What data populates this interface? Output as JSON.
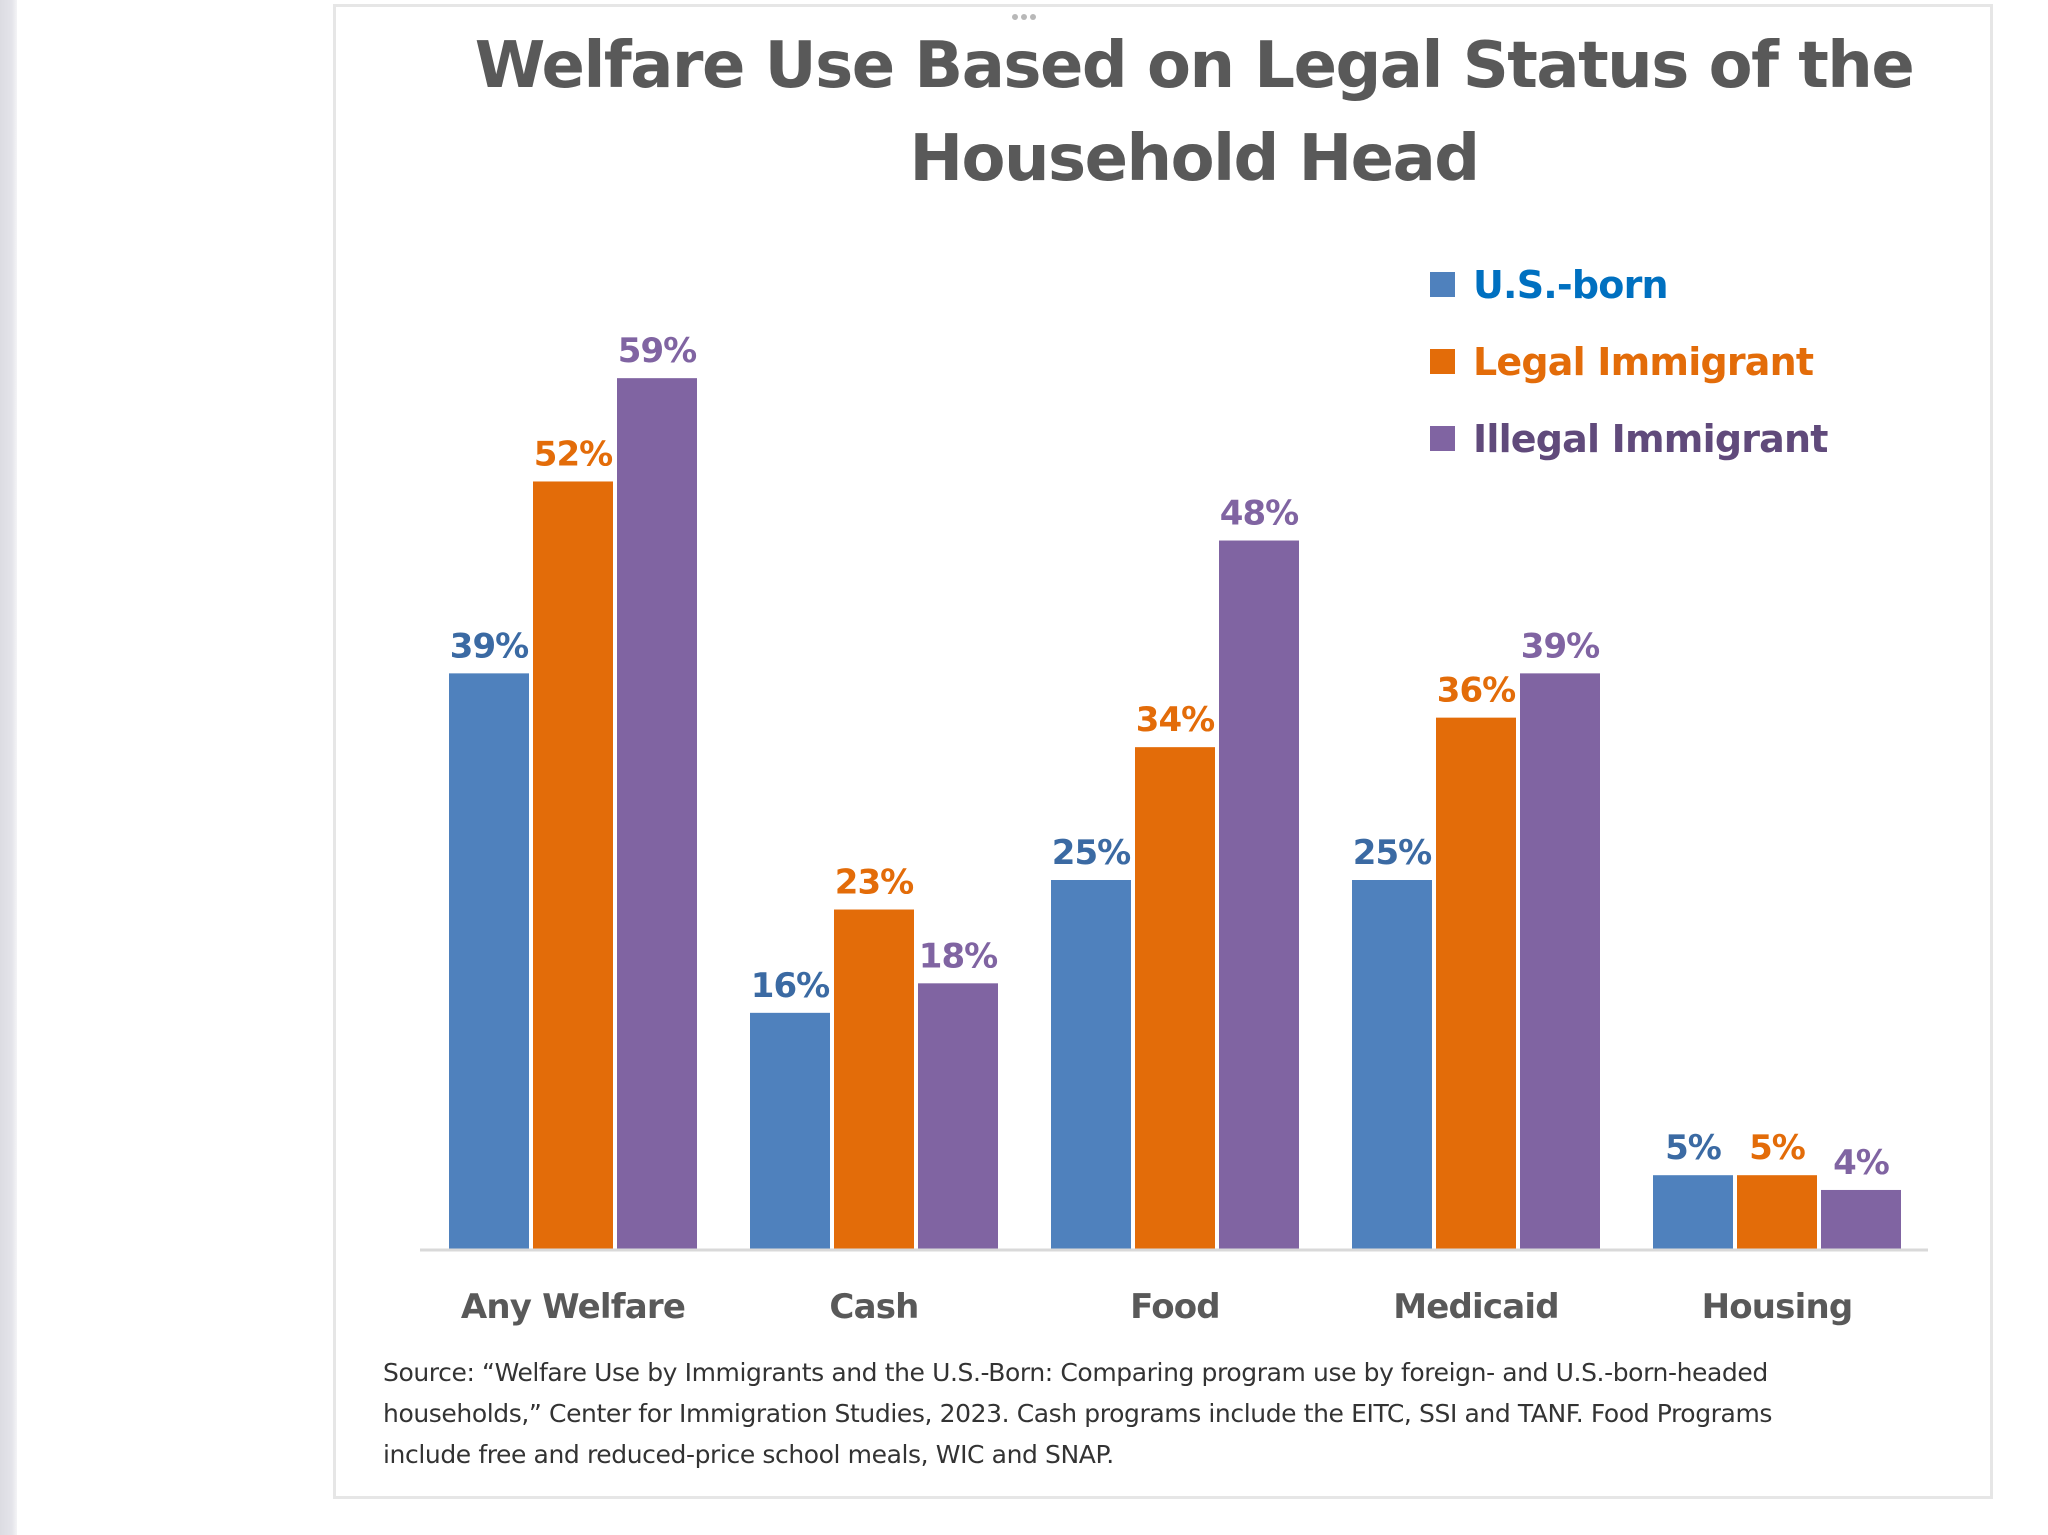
{
  "chart_data": {
    "type": "bar",
    "title": "Welfare Use Based on Legal Status of the Household Head",
    "title_lines": [
      "Welfare Use Based on Legal Status of the",
      "Household Head"
    ],
    "categories": [
      "Any Welfare",
      "Cash",
      "Food",
      "Medicaid",
      "Housing"
    ],
    "series": [
      {
        "name": "U.S.-born",
        "values": [
          39,
          16,
          25,
          25,
          5
        ],
        "color": "#4f81bd",
        "label_color": "#3b6aa3",
        "legend_color": "#0070c0"
      },
      {
        "name": "Legal Immigrant",
        "values": [
          52,
          23,
          34,
          36,
          5
        ],
        "color": "#e36c09",
        "label_color": "#e36c09",
        "legend_color": "#e36c09"
      },
      {
        "name": "Illegal Immigrant",
        "values": [
          59,
          18,
          48,
          39,
          4
        ],
        "color": "#8064a2",
        "label_color": "#8064a2",
        "legend_color": "#604a7b"
      }
    ],
    "value_format": "percent",
    "xlabel": "",
    "ylabel": "",
    "ylim": [
      0,
      60
    ],
    "grid": false,
    "y_axis_visible": false,
    "legend_position": "top-right",
    "source_note": "Source: “Welfare Use by Immigrants and the U.S.-Born: Comparing program use by foreign- and U.S.-born-headed households,” Center for Immigration Studies, 2023. Cash programs include the EITC, SSI and TANF.  Food Programs include free and reduced-price school meals, WIC and SNAP."
  },
  "source_lines": [
    "Source: “Welfare Use by Immigrants and the U.S.-Born: Comparing program use by foreign- and U.S.-born-headed",
    "households,” Center for Immigration Studies, 2023. Cash programs include the EITC, SSI and TANF.  Food Programs",
    "include free and reduced-price school meals, WIC and SNAP."
  ],
  "colors": {
    "title": "#595959",
    "axis_label": "#595959",
    "axis_line": "#d9d9d9",
    "source_text": "#333333"
  }
}
